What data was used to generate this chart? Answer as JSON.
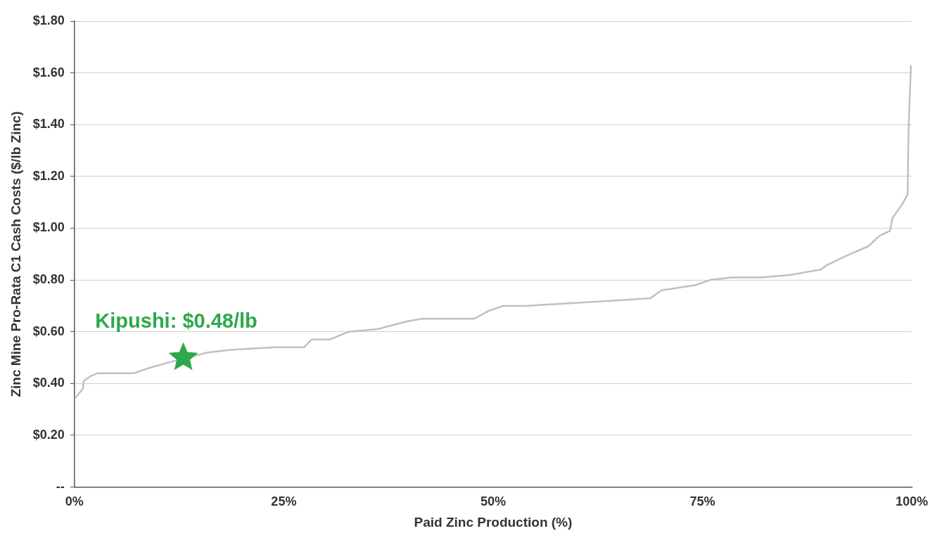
{
  "chart_data": {
    "type": "line",
    "xlabel": "Paid Zinc Production (%)",
    "ylabel": "Zinc Mine Pro-Rata C1 Cash Costs ($/lb Zinc)",
    "xlim": [
      0,
      100
    ],
    "xticks": [
      {
        "value": 0,
        "label": "0%"
      },
      {
        "value": 25,
        "label": "25%"
      },
      {
        "value": 50,
        "label": "50%"
      },
      {
        "value": 75,
        "label": "75%"
      },
      {
        "value": 100,
        "label": "100%"
      }
    ],
    "ylim": [
      0,
      1.8
    ],
    "yticks": [
      {
        "value": 0,
        "label": "--"
      },
      {
        "value": 0.2,
        "label": "$0.20"
      },
      {
        "value": 0.4,
        "label": "$0.40"
      },
      {
        "value": 0.6,
        "label": "$0.60"
      },
      {
        "value": 0.8,
        "label": "$0.80"
      },
      {
        "value": 1,
        "label": "$1.00"
      },
      {
        "value": 1.2,
        "label": "$1.20"
      },
      {
        "value": 1.4,
        "label": "$1.40"
      },
      {
        "value": 1.6,
        "label": "$1.60"
      },
      {
        "value": 1.8,
        "label": "$1.80"
      }
    ],
    "grid": "y",
    "legend": false,
    "series": [
      {
        "color": "#c0c0c0",
        "marker": "none",
        "x": [
          0,
          0.5,
          1,
          1.1,
          2,
          2.8,
          7.1,
          8.9,
          11.1,
          12.4,
          15.9,
          18.6,
          23.9,
          27.4,
          28.3,
          30.5,
          32.7,
          36.2,
          39.7,
          41.5,
          47.7,
          49.4,
          51.2,
          53.8,
          59.1,
          64.4,
          68.8,
          70.1,
          74.1,
          75.9,
          78.5,
          82,
          85.6,
          89.1,
          90,
          92.6,
          94.8,
          96.1,
          97.4,
          97.7,
          98.8,
          99.5,
          99.6,
          99.9
        ],
        "values": [
          0.34,
          0.36,
          0.38,
          0.41,
          0.43,
          0.44,
          0.44,
          0.46,
          0.48,
          null,
          0.52,
          0.53,
          0.54,
          0.54,
          0.57,
          0.57,
          0.6,
          0.61,
          0.64,
          0.65,
          0.65,
          0.68,
          0.7,
          0.7,
          0.71,
          0.72,
          0.73,
          0.76,
          0.78,
          0.8,
          0.81,
          0.81,
          0.82,
          0.84,
          0.86,
          0.9,
          0.93,
          0.97,
          0.99,
          1.04,
          1.09,
          1.13,
          1.37,
          1.63
        ]
      },
      {
        "type": "scatter",
        "color": "#2fa84a",
        "marker": "star",
        "x": [
          13
        ],
        "values": [
          0.5
        ]
      }
    ],
    "annotations": [
      {
        "text": "Kipushi: $0.48/lb",
        "x": 13,
        "y": 0.5
      }
    ]
  }
}
